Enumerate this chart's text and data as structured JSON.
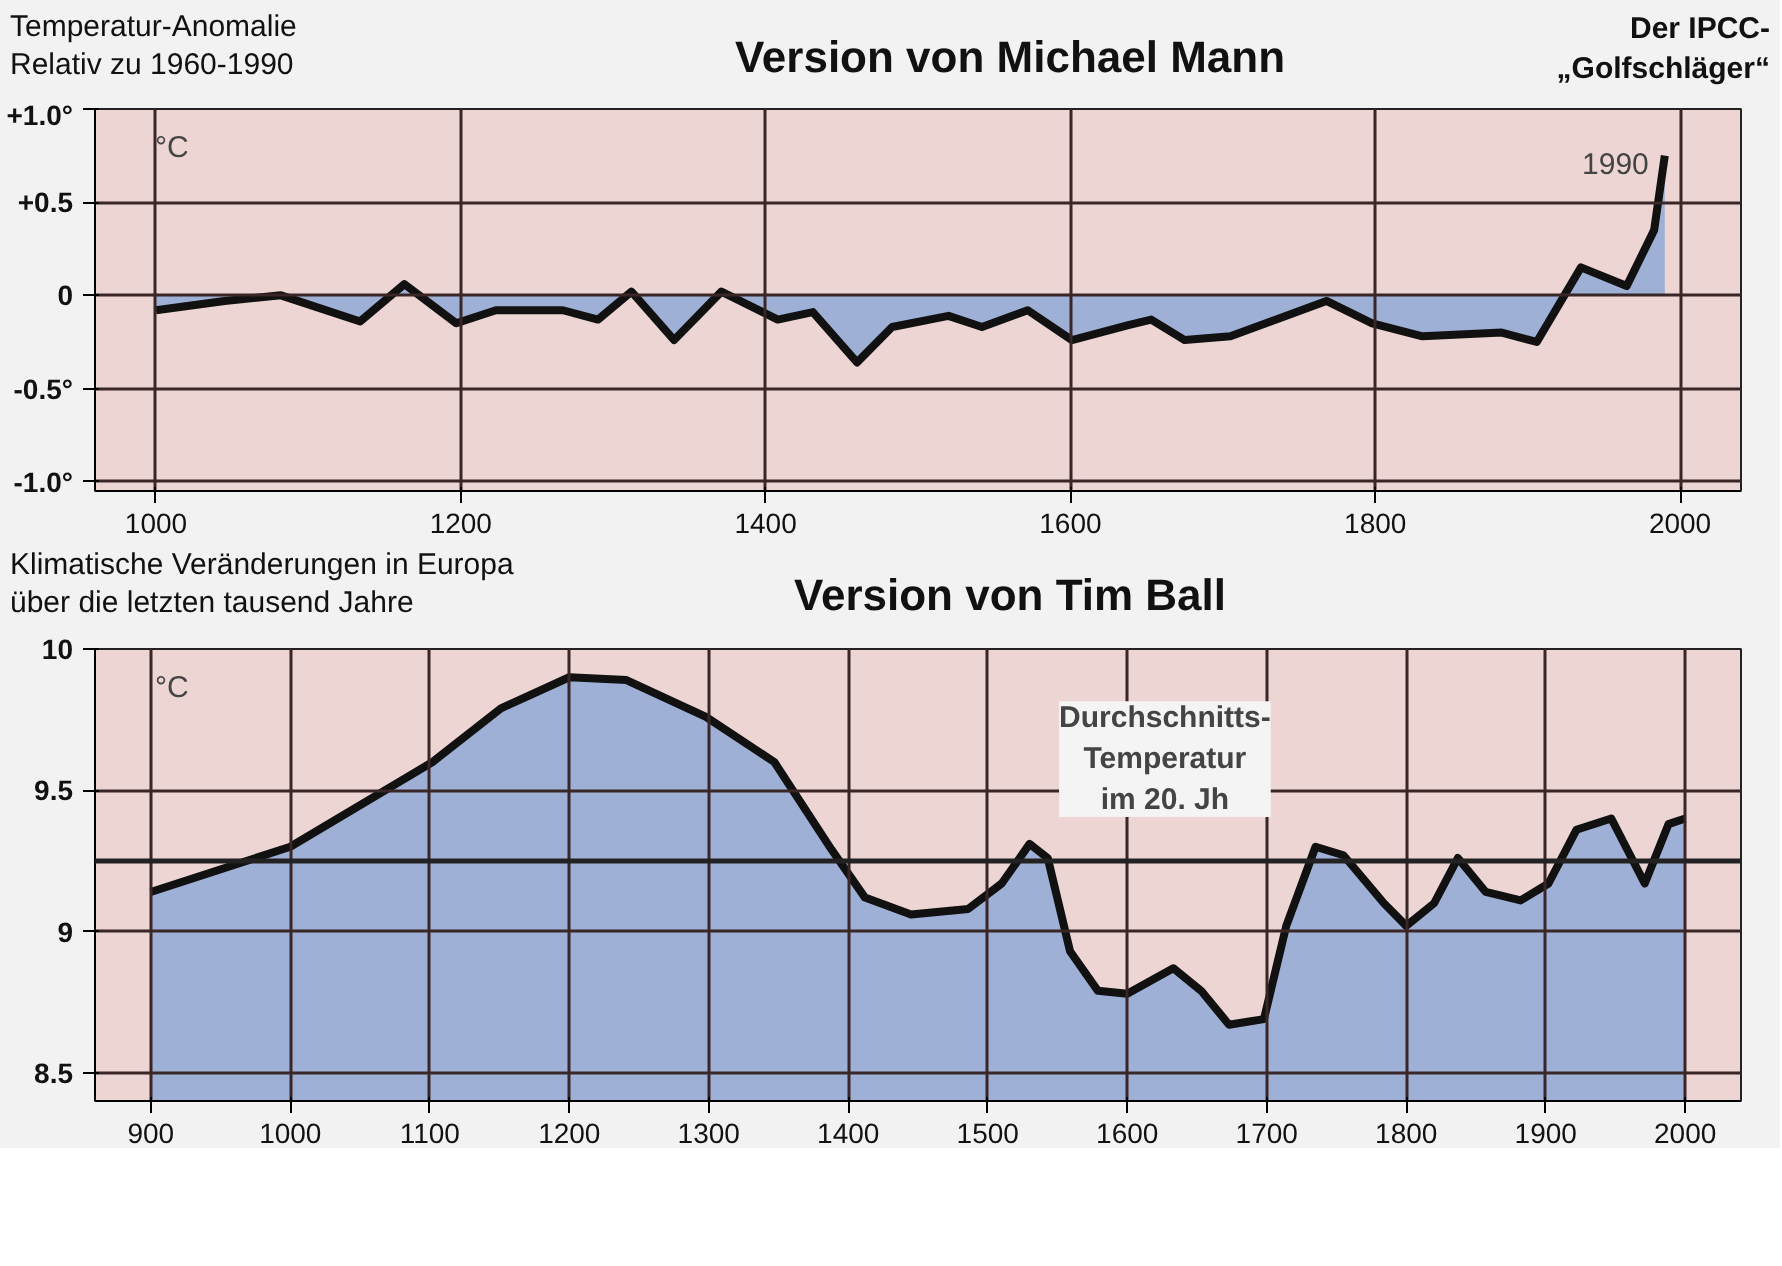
{
  "chart_data": [
    {
      "type": "area",
      "title": "Version von Michael Mann",
      "annotations": [
        "Temperatur-Anomalie\nRelativ zu 1960-1990",
        "Der IPCC-\n„Golfschläger“",
        "°C",
        {
          "text": "1990",
          "x": 1990,
          "y": 0.75
        }
      ],
      "x": [
        1000,
        1045,
        1082,
        1134,
        1163,
        1197,
        1223,
        1267,
        1290,
        1312,
        1340,
        1371,
        1408,
        1431,
        1460,
        1483,
        1520,
        1542,
        1572,
        1601,
        1638,
        1653,
        1675,
        1705,
        1735,
        1768,
        1798,
        1831,
        1883,
        1906,
        1935,
        1965,
        1983,
        1990
      ],
      "series": [
        {
          "color": "#9fb0d6",
          "values": [
            -0.08,
            -0.03,
            0.0,
            -0.14,
            0.06,
            -0.15,
            -0.08,
            -0.08,
            -0.13,
            0.02,
            -0.24,
            0.02,
            -0.13,
            -0.09,
            -0.36,
            -0.17,
            -0.11,
            -0.17,
            -0.08,
            -0.24,
            -0.16,
            -0.13,
            -0.24,
            -0.22,
            -0.13,
            -0.03,
            -0.15,
            -0.22,
            -0.2,
            -0.25,
            0.15,
            0.05,
            0.35,
            0.75
          ]
        }
      ],
      "xlim": [
        960,
        2040
      ],
      "ylim": [
        -1.05,
        1.0
      ],
      "xticks": [
        1000,
        1200,
        1400,
        1600,
        1800,
        2000
      ],
      "yticks": [
        {
          "value": -1.0,
          "label": "-1.0°"
        },
        {
          "value": -0.5,
          "label": "-0.5°"
        },
        0.0,
        {
          "value": 0.5,
          "label": "+0.5"
        },
        {
          "value": 1.0,
          "label": "+1.0°"
        }
      ],
      "grid": true
    },
    {
      "type": "area",
      "title": "Version von Tim Ball",
      "annotations": [
        "Klimatische Veränderungen in Europa\nüber die letzten tausend Jahre",
        "°C"
      ],
      "x": [
        900,
        1000,
        1102,
        1151,
        1200,
        1241,
        1298,
        1347,
        1388,
        1412,
        1445,
        1486,
        1510,
        1530,
        1543,
        1559,
        1579,
        1600,
        1633,
        1653,
        1673,
        1698,
        1714,
        1735,
        1755,
        1784,
        1800,
        1820,
        1837,
        1857,
        1882,
        1902,
        1922,
        1947,
        1971,
        1988,
        2000
      ],
      "series": [
        {
          "color": "#9fb0d6",
          "values": [
            9.14,
            9.3,
            9.6,
            9.79,
            9.9,
            9.89,
            9.76,
            9.6,
            9.29,
            9.12,
            9.06,
            9.08,
            9.17,
            9.31,
            9.26,
            8.93,
            8.79,
            8.78,
            8.87,
            8.79,
            8.67,
            8.69,
            9.02,
            9.3,
            9.27,
            9.1,
            9.02,
            9.1,
            9.26,
            9.14,
            9.11,
            9.17,
            9.36,
            9.4,
            9.17,
            9.38,
            9.4
          ]
        }
      ],
      "xlim": [
        860,
        2040
      ],
      "ylim": [
        8.4,
        10.0
      ],
      "xticks": [
        900,
        1000,
        1100,
        1200,
        1300,
        1400,
        1500,
        1600,
        1700,
        1800,
        1900,
        2000
      ],
      "yticks": [
        8.5,
        9.0,
        9.5,
        10.0
      ],
      "grid": true,
      "ref_lines": [
        {
          "axis": "y",
          "value": 9.25,
          "label": "Durchschnitts-\nTemperatur\nim 20. Jh"
        }
      ]
    }
  ]
}
